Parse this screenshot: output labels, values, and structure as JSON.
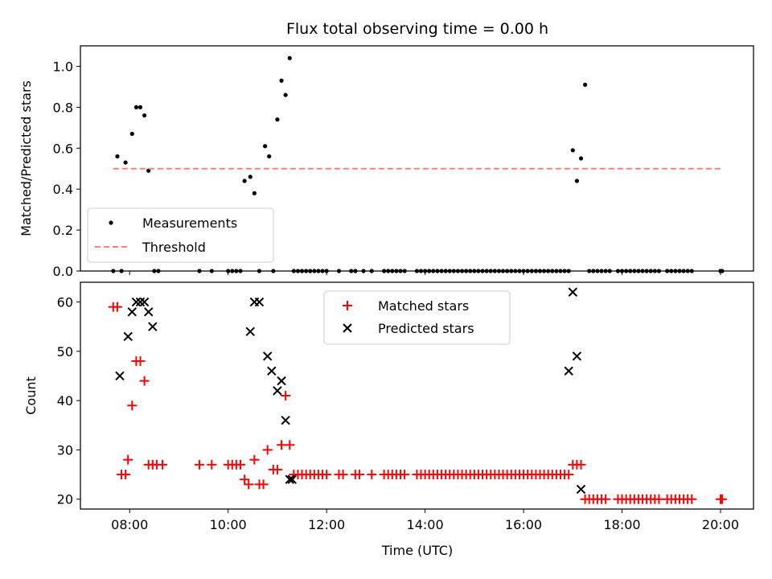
{
  "chart_data": [
    {
      "type": "scatter",
      "title": "Flux total observing time = 0.00 h",
      "xlabel": "",
      "ylabel": "Matched/Predicted stars",
      "xlim_hours": [
        7.0,
        20.67
      ],
      "ylim": [
        0.0,
        1.1
      ],
      "x_ticks": [
        "08:00",
        "10:00",
        "12:00",
        "14:00",
        "16:00",
        "18:00",
        "20:00"
      ],
      "y_ticks": [
        "0.0",
        "0.2",
        "0.4",
        "0.6",
        "0.8",
        "1.0"
      ],
      "legend_position": "lower left",
      "series": [
        {
          "name": "Measurements",
          "color": "#000000",
          "marker": "dot",
          "x": [
            "07:40",
            "07:45",
            "07:50",
            "07:55",
            "08:03",
            "08:08",
            "08:13",
            "08:18",
            "08:23",
            "08:30",
            "08:35",
            "09:25",
            "09:40",
            "10:00",
            "10:05",
            "10:10",
            "10:15",
            "10:20",
            "10:27",
            "10:32",
            "10:38",
            "10:45",
            "10:50",
            "10:55",
            "11:00",
            "11:05",
            "11:10",
            "11:15",
            "11:20",
            "11:25",
            "11:30",
            "11:35",
            "11:40",
            "11:45",
            "11:50",
            "11:55",
            "12:00",
            "12:15",
            "12:30",
            "12:35",
            "12:45",
            "12:55",
            "13:10",
            "13:15",
            "13:20",
            "13:25",
            "13:30",
            "13:35",
            "13:50",
            "13:55",
            "14:00",
            "14:05",
            "14:10",
            "14:15",
            "14:20",
            "14:25",
            "14:30",
            "14:35",
            "14:40",
            "14:45",
            "14:50",
            "14:55",
            "15:00",
            "15:05",
            "15:10",
            "15:15",
            "15:20",
            "15:25",
            "15:30",
            "15:35",
            "15:40",
            "15:45",
            "15:50",
            "15:55",
            "16:00",
            "16:05",
            "16:10",
            "16:15",
            "16:20",
            "16:25",
            "16:30",
            "16:35",
            "16:40",
            "16:45",
            "16:50",
            "16:55",
            "17:00",
            "17:05",
            "17:10",
            "17:15",
            "17:20",
            "17:25",
            "17:30",
            "17:35",
            "17:40",
            "17:45",
            "17:55",
            "18:00",
            "18:05",
            "18:10",
            "18:15",
            "18:20",
            "18:25",
            "18:30",
            "18:35",
            "18:40",
            "18:45",
            "18:55",
            "19:00",
            "19:05",
            "19:10",
            "19:15",
            "19:20",
            "19:25",
            "20:00",
            "20:02"
          ],
          "y": [
            0.0,
            0.56,
            0.0,
            0.53,
            0.67,
            0.8,
            0.8,
            0.76,
            0.49,
            0.0,
            0.0,
            0.0,
            0.0,
            0.0,
            0.0,
            0.0,
            0.0,
            0.44,
            0.46,
            0.38,
            0.0,
            0.61,
            0.56,
            0.0,
            0.74,
            0.93,
            0.86,
            1.04,
            0.0,
            0.0,
            0.0,
            0.0,
            0.0,
            0.0,
            0.0,
            0.0,
            0.0,
            0.0,
            0.0,
            0.0,
            0.0,
            0.0,
            0.0,
            0.0,
            0.0,
            0.0,
            0.0,
            0.0,
            0.0,
            0.0,
            0.0,
            0.0,
            0.0,
            0.0,
            0.0,
            0.0,
            0.0,
            0.0,
            0.0,
            0.0,
            0.0,
            0.0,
            0.0,
            0.0,
            0.0,
            0.0,
            0.0,
            0.0,
            0.0,
            0.0,
            0.0,
            0.0,
            0.0,
            0.0,
            0.0,
            0.0,
            0.0,
            0.0,
            0.0,
            0.0,
            0.0,
            0.0,
            0.0,
            0.0,
            0.0,
            0.0,
            0.59,
            0.44,
            0.55,
            0.91,
            0.0,
            0.0,
            0.0,
            0.0,
            0.0,
            0.0,
            0.0,
            0.0,
            0.0,
            0.0,
            0.0,
            0.0,
            0.0,
            0.0,
            0.0,
            0.0,
            0.0,
            0.0,
            0.0,
            0.0,
            0.0,
            0.0,
            0.0,
            0.0,
            0.0,
            0.0
          ]
        },
        {
          "name": "Threshold",
          "color": "#ff7f7f",
          "style": "dashed",
          "x": [
            "07:40",
            "20:00"
          ],
          "y": [
            0.5,
            0.5
          ]
        }
      ]
    },
    {
      "type": "scatter",
      "title": "",
      "xlabel": "Time (UTC)",
      "ylabel": "Count",
      "xlim_hours": [
        7.0,
        20.67
      ],
      "ylim": [
        18.0,
        64.0
      ],
      "x_ticks": [
        "08:00",
        "10:00",
        "12:00",
        "14:00",
        "16:00",
        "18:00",
        "20:00"
      ],
      "y_ticks": [
        "20",
        "30",
        "40",
        "50",
        "60"
      ],
      "legend_position": "upper center",
      "series": [
        {
          "name": "Matched stars",
          "color": "#ff0000",
          "marker": "plus",
          "x": [
            "07:40",
            "07:45",
            "07:50",
            "07:55",
            "07:58",
            "08:03",
            "08:08",
            "08:13",
            "08:18",
            "08:23",
            "08:28",
            "08:33",
            "08:40",
            "09:25",
            "09:40",
            "10:00",
            "10:05",
            "10:10",
            "10:15",
            "10:20",
            "10:25",
            "10:32",
            "10:38",
            "10:43",
            "10:48",
            "10:55",
            "11:00",
            "11:05",
            "11:10",
            "11:15",
            "11:20",
            "11:25",
            "11:30",
            "11:35",
            "11:40",
            "11:45",
            "11:50",
            "11:55",
            "12:00",
            "12:15",
            "12:20",
            "12:35",
            "12:40",
            "12:55",
            "13:10",
            "13:15",
            "13:20",
            "13:25",
            "13:30",
            "13:35",
            "13:50",
            "13:55",
            "14:00",
            "14:05",
            "14:10",
            "14:15",
            "14:20",
            "14:25",
            "14:30",
            "14:35",
            "14:40",
            "14:45",
            "14:50",
            "14:55",
            "15:00",
            "15:05",
            "15:10",
            "15:15",
            "15:20",
            "15:25",
            "15:30",
            "15:35",
            "15:40",
            "15:45",
            "15:50",
            "15:55",
            "16:00",
            "16:05",
            "16:10",
            "16:15",
            "16:20",
            "16:25",
            "16:30",
            "16:35",
            "16:40",
            "16:45",
            "16:50",
            "16:55",
            "17:00",
            "17:05",
            "17:10",
            "17:15",
            "17:20",
            "17:25",
            "17:30",
            "17:35",
            "17:40",
            "17:55",
            "18:00",
            "18:05",
            "18:10",
            "18:15",
            "18:20",
            "18:25",
            "18:30",
            "18:35",
            "18:40",
            "18:45",
            "18:55",
            "19:00",
            "19:05",
            "19:10",
            "19:15",
            "19:20",
            "19:25",
            "20:00",
            "20:02"
          ],
          "y": [
            59,
            59,
            25,
            25,
            28,
            39,
            48,
            48,
            44,
            27,
            27,
            27,
            27,
            27,
            27,
            27,
            27,
            27,
            27,
            24,
            23,
            28,
            23,
            23,
            30,
            26,
            26,
            31,
            41,
            31,
            25,
            25,
            25,
            25,
            25,
            25,
            25,
            25,
            25,
            25,
            25,
            25,
            25,
            25,
            25,
            25,
            25,
            25,
            25,
            25,
            25,
            25,
            25,
            25,
            25,
            25,
            25,
            25,
            25,
            25,
            25,
            25,
            25,
            25,
            25,
            25,
            25,
            25,
            25,
            25,
            25,
            25,
            25,
            25,
            25,
            25,
            25,
            25,
            25,
            25,
            25,
            25,
            25,
            25,
            25,
            25,
            25,
            25,
            27,
            27,
            27,
            20,
            20,
            20,
            20,
            20,
            20,
            20,
            20,
            20,
            20,
            20,
            20,
            20,
            20,
            20,
            20,
            20,
            20,
            20,
            20,
            20,
            20,
            20,
            20,
            20,
            20
          ]
        },
        {
          "name": "Predicted stars",
          "color": "#000000",
          "marker": "x",
          "x": [
            "07:48",
            "07:58",
            "08:03",
            "08:08",
            "08:13",
            "08:18",
            "08:23",
            "08:28",
            "10:27",
            "10:32",
            "10:38",
            "10:48",
            "10:53",
            "11:00",
            "11:05",
            "11:10",
            "11:15",
            "11:18",
            "16:55",
            "17:00",
            "17:05",
            "17:10"
          ],
          "y": [
            45,
            53,
            58,
            60,
            60,
            60,
            58,
            55,
            54,
            60,
            60,
            49,
            46,
            42,
            44,
            36,
            24,
            24,
            46,
            62,
            49,
            22
          ]
        }
      ]
    }
  ]
}
